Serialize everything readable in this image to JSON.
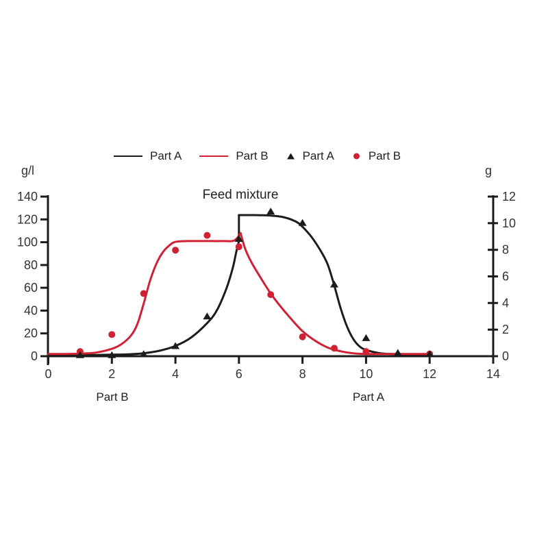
{
  "chart_data": {
    "type": "line",
    "title": "Feed mixture",
    "grid": false,
    "legend_position": "top",
    "colors": {
      "part_a": "#1c1c1c",
      "part_b": "#cf2133",
      "text": "#333333",
      "axis": "#1c1c1c"
    },
    "x_axis": {
      "range": [
        0,
        14
      ],
      "ticks": [
        0,
        2,
        4,
        6,
        8,
        10,
        12,
        14
      ]
    },
    "y_axis_left": {
      "label": "g/l",
      "range": [
        0,
        140
      ],
      "ticks": [
        0,
        20,
        40,
        60,
        80,
        100,
        120,
        140
      ]
    },
    "y_axis_right": {
      "label": "g",
      "range": [
        0,
        12
      ],
      "ticks": [
        0,
        2,
        4,
        6,
        8,
        10,
        12
      ]
    },
    "legend": [
      {
        "label": "Part A",
        "swatch": "line",
        "color": "#1c1c1c"
      },
      {
        "label": "Part B",
        "swatch": "line",
        "color": "#cf2133"
      },
      {
        "label": "Part A",
        "swatch": "triangle",
        "color": "#1c1c1c"
      },
      {
        "label": "Part B",
        "swatch": "dot",
        "color": "#cf2133"
      }
    ],
    "annotations": [
      {
        "text": "Part B",
        "x": 2
      },
      {
        "text": "Part A",
        "x": 10
      }
    ],
    "series": [
      {
        "name": "Part A",
        "kind": "line",
        "color": "#1c1c1c",
        "axis": "left",
        "segments": [
          {
            "smooth": true,
            "points": [
              [
                0,
                1
              ],
              [
                0.5,
                1
              ],
              [
                1,
                1
              ],
              [
                1.5,
                1.1
              ],
              [
                2,
                1.3
              ],
              [
                2.5,
                1.7
              ],
              [
                3,
                2.6
              ],
              [
                3.5,
                4.8
              ],
              [
                4,
                9
              ],
              [
                4.5,
                16.5
              ],
              [
                5,
                29
              ],
              [
                5.3,
                40
              ],
              [
                5.6,
                59
              ],
              [
                5.8,
                77
              ],
              [
                5.92,
                92
              ],
              [
                6,
                101
              ]
            ]
          },
          {
            "smooth": false,
            "points": [
              [
                6,
                101
              ],
              [
                6,
                123.8
              ]
            ]
          },
          {
            "smooth": true,
            "points": [
              [
                6,
                123.8
              ],
              [
                6.5,
                123.8
              ],
              [
                7,
                123.3
              ],
              [
                7.4,
                122
              ],
              [
                7.8,
                118
              ],
              [
                8,
                113.5
              ],
              [
                8.3,
                104
              ],
              [
                8.6,
                91
              ],
              [
                8.8,
                80
              ],
              [
                9,
                62
              ],
              [
                9.2,
                42
              ],
              [
                9.4,
                26
              ],
              [
                9.6,
                15
              ],
              [
                9.8,
                8.5
              ],
              [
                10,
                5.5
              ],
              [
                10.4,
                2.8
              ],
              [
                10.8,
                1.9
              ],
              [
                11.4,
                1.7
              ],
              [
                12,
                1.7
              ]
            ]
          }
        ]
      },
      {
        "name": "Part B",
        "kind": "line",
        "color": "#cf2133",
        "axis": "left",
        "segments": [
          {
            "smooth": true,
            "points": [
              [
                0,
                2
              ],
              [
                0.6,
                2
              ],
              [
                1,
                2.3
              ],
              [
                1.5,
                3.2
              ],
              [
                2,
                6.5
              ],
              [
                2.3,
                10.5
              ],
              [
                2.6,
                18
              ],
              [
                2.8,
                28
              ],
              [
                3,
                46
              ],
              [
                3.2,
                66
              ],
              [
                3.4,
                81
              ],
              [
                3.6,
                91
              ],
              [
                3.8,
                97
              ],
              [
                4,
                100.3
              ],
              [
                4.4,
                101
              ],
              [
                5,
                101
              ],
              [
                5.5,
                101
              ],
              [
                5.85,
                101.5
              ],
              [
                6.05,
                108
              ]
            ]
          },
          {
            "smooth": true,
            "points": [
              [
                6.05,
                108
              ],
              [
                6.2,
                94
              ],
              [
                6.4,
                82
              ],
              [
                6.7,
                68
              ],
              [
                7,
                55
              ],
              [
                7.3,
                44
              ],
              [
                7.6,
                34
              ],
              [
                8,
                22
              ],
              [
                8.4,
                13.5
              ],
              [
                8.8,
                7.5
              ],
              [
                9.2,
                4.3
              ],
              [
                9.6,
                2.6
              ],
              [
                10,
                2
              ],
              [
                10.8,
                2
              ],
              [
                11.5,
                2
              ],
              [
                12,
                2
              ]
            ]
          }
        ]
      },
      {
        "name": "Part A",
        "kind": "scatter",
        "marker": "triangle",
        "color": "#1c1c1c",
        "axis": "left",
        "points": [
          [
            1,
            1
          ],
          [
            2,
            1
          ],
          [
            3,
            2
          ],
          [
            4,
            9
          ],
          [
            5,
            35
          ],
          [
            6,
            103
          ],
          [
            7,
            127
          ],
          [
            8,
            117
          ],
          [
            9,
            63
          ],
          [
            10,
            16
          ],
          [
            11,
            3
          ],
          [
            12,
            2
          ]
        ]
      },
      {
        "name": "Part B",
        "kind": "scatter",
        "marker": "circle",
        "color": "#cf2133",
        "axis": "left",
        "points": [
          [
            1,
            4
          ],
          [
            2,
            19
          ],
          [
            3,
            55
          ],
          [
            4,
            93
          ],
          [
            5,
            106
          ],
          [
            6,
            96
          ],
          [
            7,
            54
          ],
          [
            8,
            17
          ],
          [
            9,
            7
          ],
          [
            10,
            4
          ],
          [
            12,
            2
          ]
        ]
      }
    ]
  }
}
